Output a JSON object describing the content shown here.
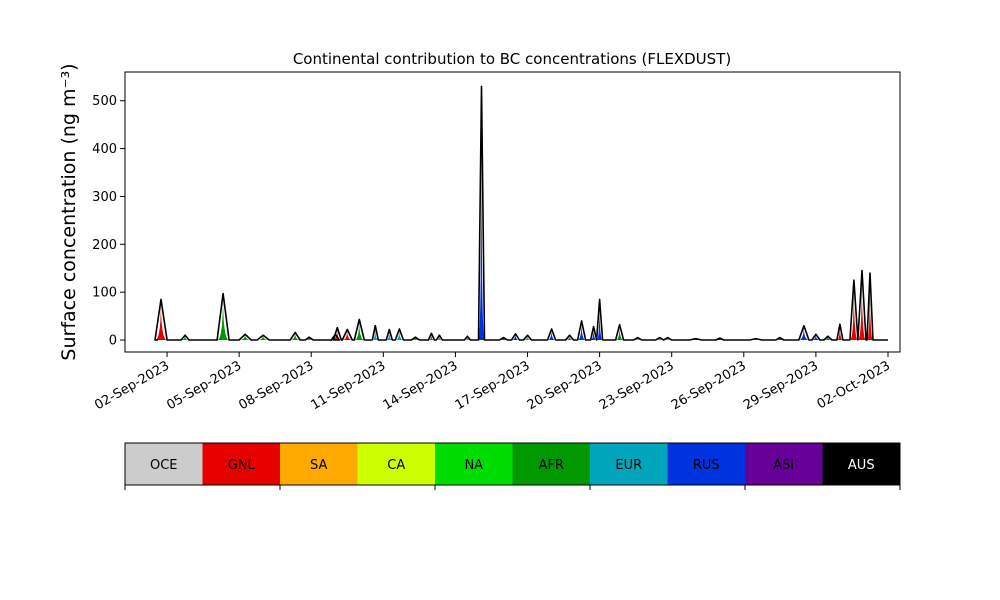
{
  "chart_data": {
    "type": "area",
    "title": "Continental contribution to BC concentrations (FLEXDUST)",
    "ylabel": "Surface concentration (ng m⁻³)",
    "xlabel": "",
    "x_start": "2023-09-01",
    "x_end": "2023-10-02",
    "xlim": [
      "2023-08-31T06:00",
      "2023-10-02T12:00"
    ],
    "ylim": [
      -25,
      560
    ],
    "y_ticks": [
      0,
      100,
      200,
      300,
      400,
      500
    ],
    "x_tick_labels": [
      "02-Sep-2023",
      "05-Sep-2023",
      "08-Sep-2023",
      "11-Sep-2023",
      "14-Sep-2023",
      "17-Sep-2023",
      "20-Sep-2023",
      "23-Sep-2023",
      "26-Sep-2023",
      "29-Sep-2023",
      "02-Oct-2023"
    ],
    "x_tick_dates": [
      "2023-09-02",
      "2023-09-05",
      "2023-09-08",
      "2023-09-11",
      "2023-09-14",
      "2023-09-17",
      "2023-09-20",
      "2023-09-23",
      "2023-09-26",
      "2023-09-29",
      "2023-10-02"
    ],
    "grid": false,
    "legend_placement": "bottom colorbar",
    "regions": [
      {
        "name": "OCE",
        "color": "#cccccc"
      },
      {
        "name": "GNL",
        "color": "#e60000"
      },
      {
        "name": "SA",
        "color": "#ffaa00"
      },
      {
        "name": "CA",
        "color": "#ccff00"
      },
      {
        "name": "NA",
        "color": "#00dd00"
      },
      {
        "name": "AFR",
        "color": "#009900"
      },
      {
        "name": "EUR",
        "color": "#00a6bb"
      },
      {
        "name": "RUS",
        "color": "#0033dd"
      },
      {
        "name": "ASI",
        "color": "#660099"
      },
      {
        "name": "AUS",
        "color": "#000000"
      }
    ],
    "peaks": [
      {
        "x": "2023-09-01T18:00",
        "total": 85,
        "region": "GNL",
        "halfwidth_h": 6
      },
      {
        "x": "2023-09-02T18:00",
        "total": 10,
        "region": "AFR",
        "halfwidth_h": 4
      },
      {
        "x": "2023-09-04T08:00",
        "total": 97,
        "region": "AFR",
        "halfwidth_h": 6
      },
      {
        "x": "2023-09-05T06:00",
        "total": 12,
        "region": "AFR",
        "halfwidth_h": 6
      },
      {
        "x": "2023-09-06T00:00",
        "total": 10,
        "region": "AFR",
        "halfwidth_h": 6
      },
      {
        "x": "2023-09-07T08:00",
        "total": 16,
        "region": "AFR",
        "halfwidth_h": 5
      },
      {
        "x": "2023-09-07T22:00",
        "total": 6,
        "region": "AFR",
        "halfwidth_h": 4
      },
      {
        "x": "2023-09-09T00:00",
        "total": 12,
        "region": "AFR",
        "halfwidth_h": 4
      },
      {
        "x": "2023-09-09T02:00",
        "total": 26,
        "region": "GNL",
        "halfwidth_h": 4
      },
      {
        "x": "2023-09-09T12:00",
        "total": 22,
        "region": "GNL",
        "halfwidth_h": 5
      },
      {
        "x": "2023-09-10T00:00",
        "total": 43,
        "region": "AFR",
        "halfwidth_h": 5
      },
      {
        "x": "2023-09-10T16:00",
        "total": 30,
        "region": "EUR",
        "halfwidth_h": 3
      },
      {
        "x": "2023-09-11T06:00",
        "total": 22,
        "region": "EUR",
        "halfwidth_h": 3
      },
      {
        "x": "2023-09-11T16:00",
        "total": 23,
        "region": "EUR",
        "halfwidth_h": 4
      },
      {
        "x": "2023-09-12T08:00",
        "total": 6,
        "region": "AFR",
        "halfwidth_h": 4
      },
      {
        "x": "2023-09-13T00:00",
        "total": 14,
        "region": "AFR",
        "halfwidth_h": 3
      },
      {
        "x": "2023-09-13T08:00",
        "total": 10,
        "region": "EUR",
        "halfwidth_h": 3
      },
      {
        "x": "2023-09-14T12:00",
        "total": 8,
        "region": "EUR",
        "halfwidth_h": 3
      },
      {
        "x": "2023-09-15T02:00",
        "total": 530,
        "region": "RUS",
        "halfwidth_h": 3
      },
      {
        "x": "2023-09-16T00:00",
        "total": 5,
        "region": "RUS",
        "halfwidth_h": 4
      },
      {
        "x": "2023-09-16T12:00",
        "total": 13,
        "region": "RUS",
        "halfwidth_h": 4
      },
      {
        "x": "2023-09-17T00:00",
        "total": 10,
        "region": "EUR",
        "halfwidth_h": 4
      },
      {
        "x": "2023-09-18T00:00",
        "total": 23,
        "region": "RUS",
        "halfwidth_h": 4
      },
      {
        "x": "2023-09-18T18:00",
        "total": 10,
        "region": "AFR",
        "halfwidth_h": 4
      },
      {
        "x": "2023-09-19T06:00",
        "total": 40,
        "region": "RUS",
        "halfwidth_h": 4
      },
      {
        "x": "2023-09-19T18:00",
        "total": 28,
        "region": "RUS",
        "halfwidth_h": 3
      },
      {
        "x": "2023-09-20T00:00",
        "total": 85,
        "region": "RUS",
        "halfwidth_h": 3
      },
      {
        "x": "2023-09-20T20:00",
        "total": 32,
        "region": "AFR",
        "halfwidth_h": 4
      },
      {
        "x": "2023-09-21T14:00",
        "total": 5,
        "region": "EUR",
        "halfwidth_h": 4
      },
      {
        "x": "2023-09-22T12:00",
        "total": 5,
        "region": "NA",
        "halfwidth_h": 4
      },
      {
        "x": "2023-09-22T20:00",
        "total": 5,
        "region": "NA",
        "halfwidth_h": 4
      },
      {
        "x": "2023-09-24T00:00",
        "total": 3,
        "region": "RUS",
        "halfwidth_h": 6
      },
      {
        "x": "2023-09-25T00:00",
        "total": 4,
        "region": "RUS",
        "halfwidth_h": 4
      },
      {
        "x": "2023-09-26T12:00",
        "total": 3,
        "region": "RUS",
        "halfwidth_h": 6
      },
      {
        "x": "2023-09-27T12:00",
        "total": 5,
        "region": "RUS",
        "halfwidth_h": 4
      },
      {
        "x": "2023-09-28T12:00",
        "total": 30,
        "region": "RUS",
        "halfwidth_h": 5
      },
      {
        "x": "2023-09-29T00:00",
        "total": 12,
        "region": "RUS",
        "halfwidth_h": 4
      },
      {
        "x": "2023-09-29T12:00",
        "total": 8,
        "region": "RUS",
        "halfwidth_h": 4
      },
      {
        "x": "2023-09-30T00:00",
        "total": 33,
        "region": "GNL",
        "halfwidth_h": 3
      },
      {
        "x": "2023-09-30T14:00",
        "total": 125,
        "region": "GNL",
        "halfwidth_h": 4
      },
      {
        "x": "2023-09-30T22:00",
        "total": 145,
        "region": "GNL",
        "halfwidth_h": 4
      },
      {
        "x": "2023-10-01T06:00",
        "total": 140,
        "region": "GNL",
        "halfwidth_h": 3
      }
    ]
  }
}
